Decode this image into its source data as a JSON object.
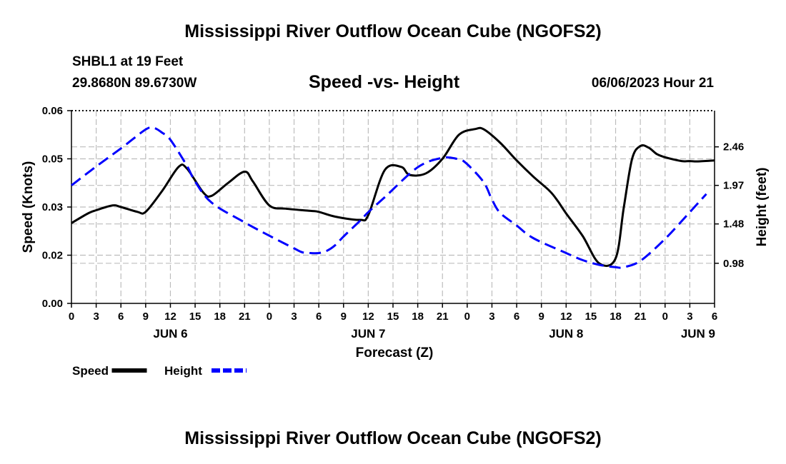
{
  "page": {
    "title_top": "Mississippi River Outflow Ocean Cube (NGOFS2)",
    "title_bottom": "Mississippi River Outflow Ocean Cube (NGOFS2)",
    "station": "SHBL1 at 19 Feet",
    "coords": "29.8680N  89.6730W",
    "subtitle": "Speed -vs- Height",
    "datetime": "06/06/2023 Hour 21"
  },
  "chart_data": {
    "type": "line",
    "title": "Speed -vs- Height",
    "xlabel": "Forecast (Z)",
    "ylabel": "Speed (Knots)",
    "y2label": "Height (feet)",
    "xlim": [
      0,
      78
    ],
    "ylim": [
      0,
      0.06
    ],
    "y2lim": [
      0.47,
      2.92
    ],
    "x_ticks": [
      0,
      3,
      6,
      9,
      12,
      15,
      18,
      21,
      24,
      27,
      30,
      33,
      36,
      39,
      42,
      45,
      48,
      51,
      54,
      57,
      60,
      63,
      66,
      69,
      72,
      75,
      78
    ],
    "x_tick_labels": [
      "0",
      "3",
      "6",
      "9",
      "12",
      "15",
      "18",
      "21",
      "0",
      "3",
      "6",
      "9",
      "12",
      "15",
      "18",
      "21",
      "0",
      "3",
      "6",
      "9",
      "12",
      "15",
      "18",
      "21",
      "0",
      "3",
      "6"
    ],
    "day_labels": [
      {
        "hour": 12,
        "label": "JUN 6"
      },
      {
        "hour": 36,
        "label": "JUN 7"
      },
      {
        "hour": 60,
        "label": "JUN 8"
      },
      {
        "hour": 76,
        "label": "JUN 9"
      }
    ],
    "y_ticks": [
      0.0,
      0.015,
      0.03,
      0.045,
      0.06
    ],
    "y_tick_labels": [
      "0.00",
      "0.02",
      "0.03",
      "0.05",
      "0.06"
    ],
    "y2_ticks": [
      0.98,
      1.48,
      1.97,
      2.46
    ],
    "y2_tick_labels": [
      "0.98",
      "1.48",
      "1.97",
      "2.46"
    ],
    "series": [
      {
        "name": "Speed",
        "axis": "left",
        "color": "#000000",
        "dash": "solid",
        "x": [
          0,
          2,
          3,
          5,
          6,
          8,
          9,
          11,
          13,
          14,
          16,
          17,
          19,
          21,
          22,
          24,
          26,
          29,
          30,
          32,
          35,
          36,
          38,
          40,
          41,
          43,
          45,
          47,
          49,
          50,
          52,
          54,
          56,
          58,
          59,
          60,
          62,
          64,
          66,
          67,
          68,
          69,
          70,
          71,
          72,
          74,
          75,
          76,
          78
        ],
        "y": [
          0.025,
          0.028,
          0.029,
          0.0305,
          0.03,
          0.0285,
          0.0285,
          0.035,
          0.0425,
          0.042,
          0.0345,
          0.0335,
          0.0375,
          0.041,
          0.038,
          0.0305,
          0.0295,
          0.0288,
          0.0285,
          0.027,
          0.026,
          0.0275,
          0.0415,
          0.0425,
          0.04,
          0.0405,
          0.045,
          0.0525,
          0.0543,
          0.0542,
          0.05,
          0.0445,
          0.0395,
          0.035,
          0.0318,
          0.028,
          0.021,
          0.0125,
          0.014,
          0.03,
          0.045,
          0.049,
          0.0485,
          0.0465,
          0.0455,
          0.0443,
          0.0443,
          0.0442,
          0.0445
        ]
      },
      {
        "name": "Height",
        "axis": "right",
        "color": "#0000ff",
        "dash": "dashed",
        "x": [
          0,
          3,
          6,
          9,
          10,
          11,
          12,
          14,
          15,
          17,
          21,
          24,
          27,
          28,
          29,
          30,
          31,
          32,
          33,
          35,
          36,
          38,
          42,
          45,
          47,
          48,
          50,
          51,
          52,
          54,
          56,
          60,
          62,
          64,
          66,
          67,
          69,
          72,
          75,
          77
        ],
        "y": [
          1.97,
          2.21,
          2.44,
          2.68,
          2.7,
          2.64,
          2.55,
          2.22,
          2.02,
          1.75,
          1.5,
          1.33,
          1.17,
          1.12,
          1.11,
          1.11,
          1.14,
          1.21,
          1.32,
          1.52,
          1.63,
          1.82,
          2.2,
          2.32,
          2.3,
          2.24,
          2.01,
          1.79,
          1.62,
          1.46,
          1.3,
          1.11,
          1.02,
          0.96,
          0.93,
          0.93,
          1.01,
          1.29,
          1.63,
          1.86
        ]
      }
    ],
    "legend": {
      "placement": "bottom-left",
      "entries": [
        {
          "label": "Speed",
          "color": "#000000",
          "dash": "solid"
        },
        {
          "label": "Height",
          "color": "#0000ff",
          "dash": "dashed"
        }
      ]
    }
  }
}
